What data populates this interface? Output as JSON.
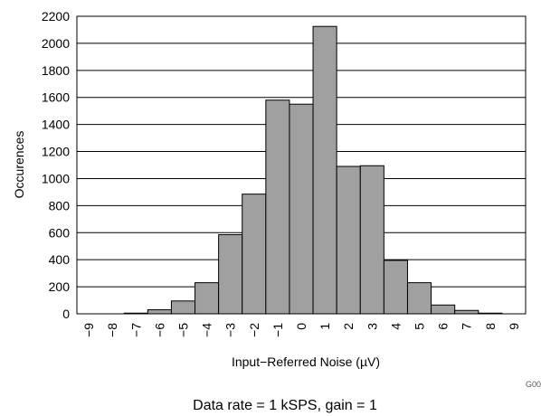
{
  "chart_data": {
    "type": "bar",
    "categories": [
      "-9",
      "-8",
      "-7",
      "-6",
      "-5",
      "-4",
      "-3",
      "-2",
      "-1",
      "0",
      "1",
      "2",
      "3",
      "4",
      "5",
      "6",
      "7",
      "8",
      "9"
    ],
    "tick_labels": [
      "−9",
      "−8",
      "−7",
      "−6",
      "−5",
      "−4",
      "−3",
      "−2",
      "−1",
      "0",
      "1",
      "2",
      "3",
      "4",
      "5",
      "6",
      "7",
      "8",
      "9"
    ],
    "values": [
      0,
      0,
      5,
      30,
      95,
      230,
      585,
      885,
      1580,
      1550,
      2125,
      1090,
      1095,
      395,
      230,
      65,
      25,
      5,
      0
    ],
    "xlabel": "Input−Referred Noise (µV)",
    "ylabel": "Occurences",
    "ylim": [
      0,
      2200
    ],
    "yticks": [
      0,
      200,
      400,
      600,
      800,
      1000,
      1200,
      1400,
      1600,
      1800,
      2000,
      2200
    ],
    "grid": true,
    "bar_color": "#a0a0a0",
    "footnote": "G00",
    "caption": "Data rate = 1 kSPS, gain = 1"
  }
}
